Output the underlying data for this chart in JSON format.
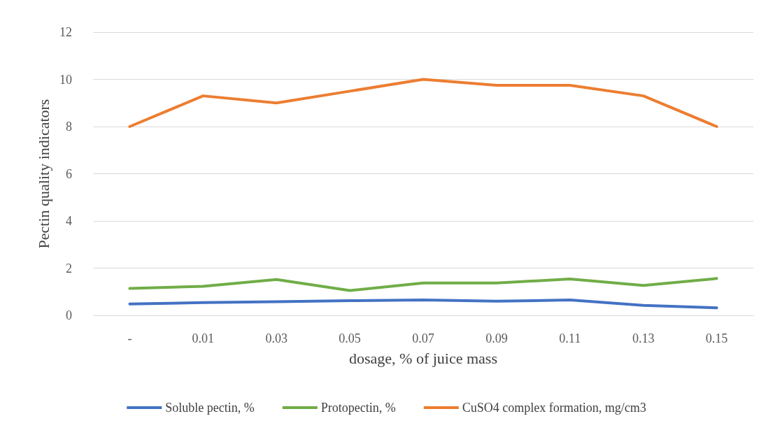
{
  "chart_data": {
    "type": "line",
    "xlabel": "dosage, % of juice mass",
    "ylabel": "Pectin quality indicators",
    "categories": [
      "-",
      "0.01",
      "0.03",
      "0.05",
      "0.07",
      "0.09",
      "0.11",
      "0.13",
      "0.15"
    ],
    "series": [
      {
        "name": "Soluble pectin, %",
        "color": "#4472c4",
        "values": [
          0.48,
          0.54,
          0.58,
          0.62,
          0.65,
          0.6,
          0.65,
          0.42,
          0.32
        ]
      },
      {
        "name": "Protopectin, %",
        "color": "#70ad47",
        "values": [
          1.14,
          1.23,
          1.52,
          1.05,
          1.37,
          1.37,
          1.54,
          1.27,
          1.56
        ]
      },
      {
        "name": "CuSO4 complex formation, mg/cm3",
        "color": "#ed7d31",
        "values": [
          8,
          9.3,
          9,
          9.5,
          10,
          9.75,
          9.75,
          9.3,
          8
        ]
      }
    ],
    "ylim": [
      0,
      12
    ],
    "yticks": [
      0,
      2,
      4,
      6,
      8,
      10,
      12
    ],
    "grid": "y",
    "legend": "bottom",
    "marker": "none",
    "line_style": "solid"
  }
}
